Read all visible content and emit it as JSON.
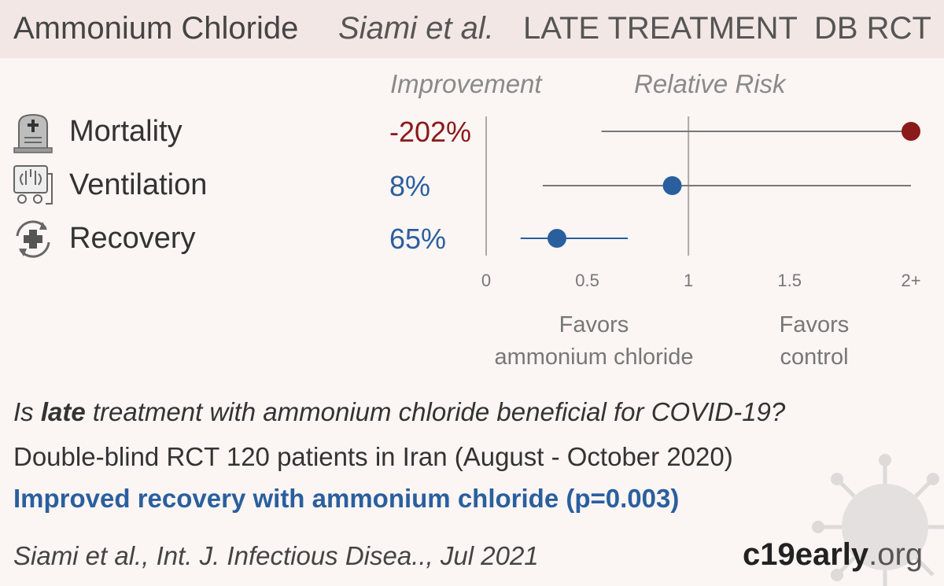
{
  "header": {
    "drug": "Ammonium Chloride",
    "study": "Siami et al.",
    "stage": "LATE TREATMENT",
    "design": "DB RCT"
  },
  "columns": {
    "improvement": "Improvement",
    "relative_risk": "Relative Risk"
  },
  "rows": [
    {
      "label": "Mortality",
      "value": "-202%",
      "color": "#8b1a1a",
      "icon": "tombstone-icon"
    },
    {
      "label": "Ventilation",
      "value": "8%",
      "color": "#2a5f9e",
      "icon": "ventilator-icon"
    },
    {
      "label": "Recovery",
      "value": "65%",
      "color": "#2a5f9e",
      "icon": "recovery-icon"
    }
  ],
  "chart_data": {
    "type": "scatter",
    "categories": [
      "Mortality",
      "Ventilation",
      "Recovery"
    ],
    "series": [
      {
        "rr": 2.1,
        "lo": 0.57,
        "hi": 2.1,
        "color": "#8b1a1a"
      },
      {
        "rr": 0.92,
        "lo": 0.28,
        "hi": 2.1,
        "color": "#2a5f9e"
      },
      {
        "rr": 0.35,
        "lo": 0.17,
        "hi": 0.7,
        "color": "#2a5f9e"
      }
    ],
    "xlim": [
      0,
      2.1
    ],
    "ticks": [
      0,
      0.5,
      1,
      1.5,
      2.1
    ],
    "tick_labels": [
      "0",
      "0.5",
      "1",
      "1.5",
      "2+"
    ],
    "reference_line": 1
  },
  "favors": {
    "left_line1": "Favors",
    "left_line2": "ammonium chloride",
    "right_line1": "Favors",
    "right_line2": "control"
  },
  "summary": {
    "q_prefix": "Is ",
    "q_bold": "late",
    "q_suffix": " treatment with ammonium chloride beneficial for COVID-19?",
    "details": "Double-blind RCT 120 patients in Iran (August - October 2020)",
    "result": "Improved recovery with ammonium chloride (p=0.003)"
  },
  "citation": "Siami et al., Int. J. Infectious Disea.., Jul 2021",
  "brand": {
    "bold": "c19early",
    "rest": ".org"
  }
}
